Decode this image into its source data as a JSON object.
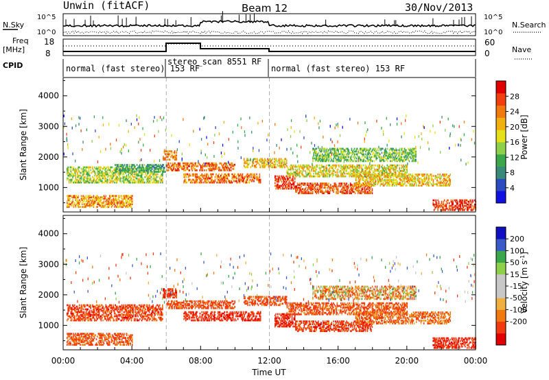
{
  "header": {
    "station": "Unwin (fitACF)",
    "beam": "Beam 12",
    "date": "30/Nov/2013"
  },
  "top_panels": {
    "nsky_label": "N.Sky",
    "nsearch_label": "N.Search",
    "nsky_ticks": [
      "10^5",
      "10^0"
    ],
    "nsearch_ticks": [
      "10^5",
      "10^0"
    ],
    "freq_label_line1": "Freq",
    "freq_label_line2": "[MHz]",
    "freq_ticks": [
      "18",
      "8"
    ],
    "nave_label": "Nave",
    "nave_ticks": [
      "60",
      "0"
    ],
    "cpid_label": "CPID",
    "cpid_segments": [
      {
        "label": "normal (fast stereo) 153 RF",
        "start": 0,
        "end": 6
      },
      {
        "label": "stereo_scan 8551 RF",
        "start": 6,
        "end": 12
      },
      {
        "label": "normal (fast stereo) 153 RF",
        "start": 12,
        "end": 24
      }
    ]
  },
  "x_axis": {
    "title": "Time UT",
    "ticks": [
      "00:00",
      "04:00",
      "08:00",
      "12:00",
      "16:00",
      "20:00",
      "00:00"
    ]
  },
  "chart_data": [
    {
      "type": "heatmap",
      "name": "power",
      "xlabel": "Time UT",
      "ylabel": "Slant Range [km]",
      "xlim": [
        0,
        24
      ],
      "ylim": [
        200,
        4600
      ],
      "yticks": [
        1000,
        2000,
        3000,
        4000
      ],
      "colorbar": {
        "label": "Power [dB]",
        "ticks": [
          4,
          8,
          12,
          16,
          20,
          24,
          28
        ],
        "range": [
          0,
          32
        ]
      },
      "x_markers": [
        6,
        12
      ],
      "bands": [
        {
          "t0": 0.2,
          "t1": 5.8,
          "r0": 1150,
          "r1": 1650,
          "v0": 10,
          "v1": 22
        },
        {
          "t0": 0.2,
          "t1": 4.0,
          "r0": 350,
          "r1": 750,
          "v0": 16,
          "v1": 28
        },
        {
          "t0": 3.0,
          "t1": 6.0,
          "r0": 1500,
          "r1": 1750,
          "v0": 6,
          "v1": 14
        },
        {
          "t0": 5.8,
          "t1": 6.6,
          "r0": 1900,
          "r1": 2200,
          "v0": 20,
          "v1": 28
        },
        {
          "t0": 6.0,
          "t1": 10.0,
          "r0": 1550,
          "r1": 1800,
          "v0": 20,
          "v1": 30
        },
        {
          "t0": 7.0,
          "t1": 11.5,
          "r0": 1150,
          "r1": 1450,
          "v0": 18,
          "v1": 30
        },
        {
          "t0": 10.5,
          "t1": 13.0,
          "r0": 1650,
          "r1": 1950,
          "v0": 14,
          "v1": 26
        },
        {
          "t0": 12.3,
          "t1": 13.5,
          "r0": 950,
          "r1": 1400,
          "v0": 24,
          "v1": 32
        },
        {
          "t0": 13.5,
          "t1": 18.0,
          "r0": 800,
          "r1": 1150,
          "v0": 22,
          "v1": 30
        },
        {
          "t0": 13.0,
          "t1": 20.0,
          "r0": 1350,
          "r1": 1750,
          "v0": 12,
          "v1": 24
        },
        {
          "t0": 17.0,
          "t1": 22.5,
          "r0": 1050,
          "r1": 1450,
          "v0": 14,
          "v1": 26
        },
        {
          "t0": 21.5,
          "t1": 24.0,
          "r0": 250,
          "r1": 600,
          "v0": 24,
          "v1": 32
        },
        {
          "t0": 14.5,
          "t1": 20.5,
          "r0": 1850,
          "r1": 2300,
          "v0": 8,
          "v1": 18
        }
      ]
    },
    {
      "type": "heatmap",
      "name": "velocity",
      "xlabel": "Time UT",
      "ylabel": "Slant Range [km]",
      "xlim": [
        0,
        24
      ],
      "ylim": [
        200,
        4600
      ],
      "yticks": [
        1000,
        2000,
        3000,
        4000
      ],
      "colorbar": {
        "label": "Velocity [m s^-1]",
        "ticks": [
          200,
          100,
          50,
          15,
          -15,
          -50,
          -100,
          -200
        ],
        "range": [
          -250,
          250
        ]
      },
      "x_markers": [
        6,
        12
      ],
      "bands": [
        {
          "t0": 0.2,
          "t1": 5.8,
          "r0": 1150,
          "r1": 1650,
          "v0": -220,
          "v1": -60
        },
        {
          "t0": 0.2,
          "t1": 4.0,
          "r0": 350,
          "r1": 750,
          "v0": -180,
          "v1": -40
        },
        {
          "t0": 5.8,
          "t1": 6.6,
          "r0": 1900,
          "r1": 2200,
          "v0": -220,
          "v1": -80
        },
        {
          "t0": 6.0,
          "t1": 10.0,
          "r0": 1550,
          "r1": 1800,
          "v0": -200,
          "v1": -60
        },
        {
          "t0": 7.0,
          "t1": 11.5,
          "r0": 1150,
          "r1": 1450,
          "v0": -240,
          "v1": -100
        },
        {
          "t0": 10.5,
          "t1": 13.0,
          "r0": 1650,
          "r1": 1950,
          "v0": -200,
          "v1": -60
        },
        {
          "t0": 12.3,
          "t1": 13.5,
          "r0": 950,
          "r1": 1400,
          "v0": -240,
          "v1": -120
        },
        {
          "t0": 13.5,
          "t1": 18.0,
          "r0": 800,
          "r1": 1150,
          "v0": -220,
          "v1": -80
        },
        {
          "t0": 13.0,
          "t1": 20.0,
          "r0": 1350,
          "r1": 1750,
          "v0": -200,
          "v1": -40
        },
        {
          "t0": 17.0,
          "t1": 22.5,
          "r0": 1050,
          "r1": 1450,
          "v0": -160,
          "v1": -20
        },
        {
          "t0": 21.5,
          "t1": 24.0,
          "r0": 250,
          "r1": 600,
          "v0": -240,
          "v1": -100
        },
        {
          "t0": 14.5,
          "t1": 20.5,
          "r0": 1850,
          "r1": 2300,
          "v0": -150,
          "v1": 60
        }
      ]
    }
  ],
  "colors": {
    "power_scale": [
      "#1010e0",
      "#2a4cc0",
      "#3a8a7a",
      "#3aa84a",
      "#8ed04a",
      "#e6e01a",
      "#f0b010",
      "#f07a10",
      "#f04010",
      "#e00000"
    ],
    "velocity_scale": [
      "#e00000",
      "#f03a10",
      "#f07a10",
      "#f0b040",
      "#c8c8c8",
      "#c8c8c8",
      "#8ed04a",
      "#3aa84a",
      "#3a5ac8",
      "#1010c0"
    ],
    "marker_line": "#b0b0b0"
  }
}
